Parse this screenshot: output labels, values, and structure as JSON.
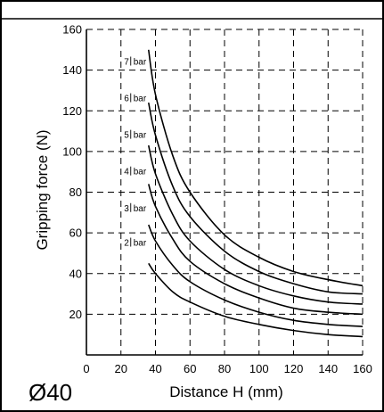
{
  "figure_label": "Ø40",
  "chart_data": {
    "type": "line",
    "title": "",
    "xlabel": "Distance H (mm)",
    "ylabel": "Gripping force (N)",
    "xlim": [
      0,
      160
    ],
    "ylim": [
      0,
      160
    ],
    "x_ticks": [
      "0",
      "20",
      "40",
      "60",
      "80",
      "100",
      "120",
      "140",
      "160"
    ],
    "y_ticks": [
      "20",
      "40",
      "60",
      "80",
      "100",
      "120",
      "140",
      "160"
    ],
    "grid": true,
    "series": [
      {
        "name": "7",
        "unit": "bar",
        "x": [
          36,
          40,
          50,
          60,
          80,
          100,
          120,
          140,
          160
        ],
        "y": [
          150,
          128,
          98,
          80,
          59,
          48,
          41,
          37,
          34
        ]
      },
      {
        "name": "6",
        "unit": "bar",
        "x": [
          36,
          40,
          50,
          60,
          80,
          100,
          120,
          140,
          160
        ],
        "y": [
          124,
          108,
          83,
          68,
          51,
          41,
          35,
          31,
          30
        ]
      },
      {
        "name": "5",
        "unit": "bar",
        "x": [
          36,
          40,
          50,
          60,
          80,
          100,
          120,
          140,
          160
        ],
        "y": [
          103,
          89,
          69,
          56,
          42,
          34,
          29,
          26,
          25
        ]
      },
      {
        "name": "4",
        "unit": "bar",
        "x": [
          36,
          40,
          50,
          60,
          80,
          100,
          120,
          140,
          160
        ],
        "y": [
          84,
          73,
          57,
          46,
          35,
          28,
          23,
          21,
          20
        ]
      },
      {
        "name": "3",
        "unit": "bar",
        "x": [
          36,
          40,
          50,
          60,
          80,
          100,
          120,
          140,
          160
        ],
        "y": [
          64,
          56,
          44,
          36,
          27,
          21,
          17,
          15,
          14
        ]
      },
      {
        "name": "2",
        "unit": "bar",
        "x": [
          36,
          40,
          50,
          60,
          80,
          100,
          120,
          140,
          160
        ],
        "y": [
          45,
          40,
          31,
          26,
          19,
          15,
          12,
          10,
          9
        ]
      }
    ],
    "series_label_y": [
      144,
      126,
      108,
      90,
      72,
      55
    ]
  }
}
